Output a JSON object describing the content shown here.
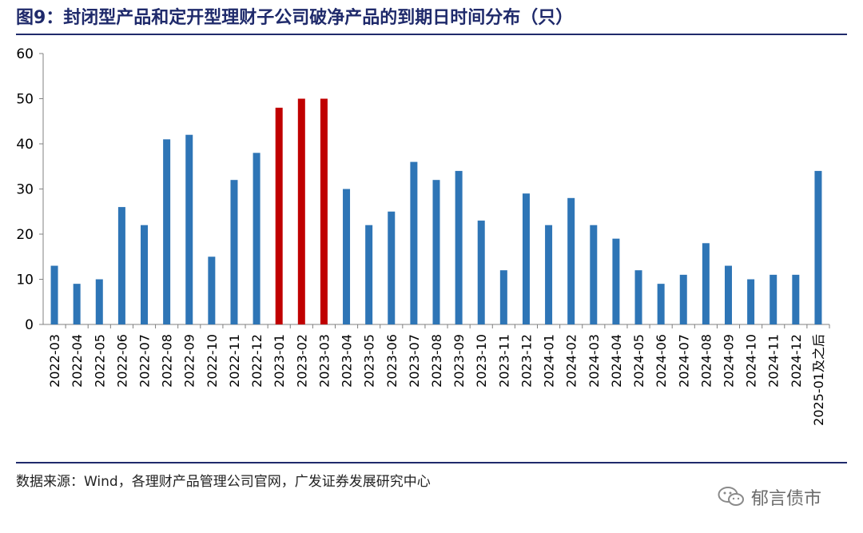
{
  "title": "图9：封闭型产品和定开型理财子公司破净产品的到期日时间分布（只）",
  "source": "数据来源：Wind，各理财产品管理公司官网，广发证券发展研究中心",
  "watermark": {
    "text": "郁言债市",
    "icon": "wechat-icon"
  },
  "colors": {
    "title": "#1f2a6b",
    "bar": "#2e75b6",
    "highlight": "#c00000",
    "axis": "#808080"
  },
  "chart_data": {
    "type": "bar",
    "title": "图9：封闭型产品和定开型理财子公司破净产品的到期日时间分布（只）",
    "xlabel": "",
    "ylabel": "",
    "ylim": [
      0,
      60
    ],
    "yticks": [
      0,
      10,
      20,
      30,
      40,
      50,
      60
    ],
    "grid": false,
    "legend": "none",
    "categories": [
      "2022-03",
      "2022-04",
      "2022-05",
      "2022-06",
      "2022-07",
      "2022-08",
      "2022-09",
      "2022-10",
      "2022-11",
      "2022-12",
      "2023-01",
      "2023-02",
      "2023-03",
      "2023-04",
      "2023-05",
      "2023-06",
      "2023-07",
      "2023-08",
      "2023-09",
      "2023-10",
      "2023-11",
      "2023-12",
      "2024-01",
      "2024-02",
      "2024-03",
      "2024-04",
      "2024-05",
      "2024-06",
      "2024-07",
      "2024-08",
      "2024-09",
      "2024-10",
      "2024-11",
      "2024-12",
      "2025-01及之后"
    ],
    "values": [
      13,
      9,
      10,
      26,
      22,
      41,
      42,
      15,
      32,
      38,
      48,
      50,
      50,
      30,
      22,
      25,
      36,
      32,
      34,
      23,
      12,
      29,
      22,
      28,
      22,
      19,
      12,
      9,
      11,
      18,
      13,
      10,
      11,
      11,
      34
    ],
    "highlight_categories": [
      "2023-01",
      "2023-02",
      "2023-03"
    ]
  }
}
